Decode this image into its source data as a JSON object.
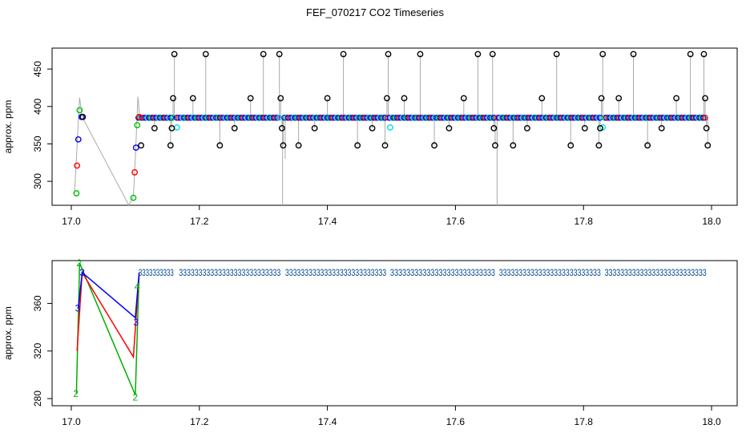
{
  "title": "FEF_070217  CO2 Timeseries",
  "chart_data": [
    {
      "type": "scatter",
      "title": "FEF_070217  CO2 Timeseries",
      "ylabel": "approx. ppm",
      "xlabel": "",
      "xlim": [
        16.97,
        18.04
      ],
      "ylim": [
        268,
        478
      ],
      "x_ticks": [
        17.0,
        17.2,
        17.4,
        17.6,
        17.8,
        18.0
      ],
      "x_tick_labels": [
        "17.0",
        "17.2",
        "17.4",
        "17.6",
        "17.8",
        "18.0"
      ],
      "y_ticks": [
        300,
        350,
        400,
        450
      ],
      "y_tick_labels": [
        "300",
        "350",
        "400",
        "450"
      ],
      "colors": {
        "red": "#ff0000",
        "green": "#00c000",
        "blue": "#0000ff",
        "cyan": "#00e0e0",
        "black": "#000000",
        "line": "#aaaaaa"
      },
      "early_points": [
        {
          "x": 17.008,
          "y": 284,
          "color": "green"
        },
        {
          "x": 17.009,
          "y": 321,
          "color": "red"
        },
        {
          "x": 17.011,
          "y": 356,
          "color": "blue"
        },
        {
          "x": 17.013,
          "y": 395,
          "color": "green"
        },
        {
          "x": 17.016,
          "y": 386,
          "color": "blue"
        },
        {
          "x": 17.018,
          "y": 386,
          "color": "black"
        },
        {
          "x": 17.097,
          "y": 278,
          "color": "green"
        },
        {
          "x": 17.099,
          "y": 312,
          "color": "red"
        },
        {
          "x": 17.101,
          "y": 345,
          "color": "blue"
        },
        {
          "x": 17.103,
          "y": 375,
          "color": "green"
        },
        {
          "x": 17.106,
          "y": 386,
          "color": "red"
        },
        {
          "x": 17.109,
          "y": 348,
          "color": "black"
        },
        {
          "x": 17.165,
          "y": 372,
          "color": "cyan"
        },
        {
          "x": 17.498,
          "y": 372,
          "color": "cyan"
        },
        {
          "x": 17.83,
          "y": 372,
          "color": "cyan"
        }
      ],
      "baseline_segments": [
        [
          17.105,
          17.16
        ],
        [
          17.165,
          17.325
        ],
        [
          17.333,
          17.492
        ],
        [
          17.495,
          17.662
        ],
        [
          17.666,
          17.826
        ],
        [
          17.833,
          17.99
        ]
      ],
      "baseline_value": 385,
      "black_outliers": [
        {
          "x": 17.13,
          "y": 371
        },
        {
          "x": 17.155,
          "y": 348
        },
        {
          "x": 17.157,
          "y": 371
        },
        {
          "x": 17.159,
          "y": 411
        },
        {
          "x": 17.161,
          "y": 470
        },
        {
          "x": 17.19,
          "y": 411
        },
        {
          "x": 17.21,
          "y": 470
        },
        {
          "x": 17.232,
          "y": 348
        },
        {
          "x": 17.255,
          "y": 371
        },
        {
          "x": 17.28,
          "y": 411
        },
        {
          "x": 17.3,
          "y": 470
        },
        {
          "x": 17.325,
          "y": 470
        },
        {
          "x": 17.327,
          "y": 411
        },
        {
          "x": 17.329,
          "y": 371
        },
        {
          "x": 17.331,
          "y": 348
        },
        {
          "x": 17.355,
          "y": 348
        },
        {
          "x": 17.38,
          "y": 371
        },
        {
          "x": 17.4,
          "y": 411
        },
        {
          "x": 17.425,
          "y": 470
        },
        {
          "x": 17.447,
          "y": 348
        },
        {
          "x": 17.47,
          "y": 371
        },
        {
          "x": 17.49,
          "y": 348
        },
        {
          "x": 17.493,
          "y": 411
        },
        {
          "x": 17.495,
          "y": 470
        },
        {
          "x": 17.52,
          "y": 411
        },
        {
          "x": 17.545,
          "y": 470
        },
        {
          "x": 17.567,
          "y": 348
        },
        {
          "x": 17.59,
          "y": 371
        },
        {
          "x": 17.613,
          "y": 411
        },
        {
          "x": 17.635,
          "y": 470
        },
        {
          "x": 17.658,
          "y": 470
        },
        {
          "x": 17.66,
          "y": 371
        },
        {
          "x": 17.662,
          "y": 348
        },
        {
          "x": 17.69,
          "y": 348
        },
        {
          "x": 17.712,
          "y": 371
        },
        {
          "x": 17.735,
          "y": 411
        },
        {
          "x": 17.758,
          "y": 470
        },
        {
          "x": 17.78,
          "y": 348
        },
        {
          "x": 17.802,
          "y": 371
        },
        {
          "x": 17.824,
          "y": 348
        },
        {
          "x": 17.826,
          "y": 371
        },
        {
          "x": 17.828,
          "y": 411
        },
        {
          "x": 17.83,
          "y": 470
        },
        {
          "x": 17.855,
          "y": 411
        },
        {
          "x": 17.878,
          "y": 470
        },
        {
          "x": 17.9,
          "y": 348
        },
        {
          "x": 17.922,
          "y": 371
        },
        {
          "x": 17.945,
          "y": 411
        },
        {
          "x": 17.967,
          "y": 470
        },
        {
          "x": 17.988,
          "y": 470
        },
        {
          "x": 17.99,
          "y": 411
        },
        {
          "x": 17.992,
          "y": 371
        },
        {
          "x": 17.994,
          "y": 348
        }
      ],
      "gray_trace": [
        [
          17.005,
          284
        ],
        [
          17.008,
          330
        ],
        [
          17.01,
          365
        ],
        [
          17.013,
          412
        ],
        [
          17.017,
          386
        ],
        [
          17.09,
          268
        ],
        [
          17.097,
          280
        ],
        [
          17.1,
          330
        ],
        [
          17.104,
          413
        ],
        [
          17.107,
          385
        ]
      ]
    },
    {
      "type": "line",
      "xlabel": "",
      "ylabel": "approx. ppm",
      "xlim": [
        16.97,
        18.04
      ],
      "ylim": [
        274,
        396
      ],
      "x_ticks": [
        17.0,
        17.2,
        17.4,
        17.6,
        17.8,
        18.0
      ],
      "x_tick_labels": [
        "17.0",
        "17.2",
        "17.4",
        "17.6",
        "17.8",
        "18.0"
      ],
      "y_ticks": [
        280,
        320,
        360
      ],
      "y_tick_labels": [
        "280",
        "320",
        "360"
      ],
      "series": [
        {
          "marker": "2",
          "color": "#00b000",
          "points": [
            [
              17.008,
              284
            ],
            [
              17.013,
              394
            ],
            [
              17.1,
              283
            ],
            [
              17.106,
              386
            ]
          ]
        },
        {
          "marker": "1",
          "color": "#ff0000",
          "points": [
            [
              17.009,
              320
            ],
            [
              17.017,
              386
            ],
            [
              17.097,
              315
            ],
            [
              17.106,
              386
            ]
          ]
        },
        {
          "marker": "3",
          "color": "#0000ff",
          "points": [
            [
              17.011,
              356
            ],
            [
              17.017,
              386
            ],
            [
              17.1,
              348
            ],
            [
              17.106,
              386
            ]
          ]
        }
      ],
      "point_labels": [
        {
          "x": 17.007,
          "y": 284,
          "text": "2",
          "color": "#00b000"
        },
        {
          "x": 17.012,
          "y": 394,
          "text": "2",
          "color": "#00b000"
        },
        {
          "x": 17.01,
          "y": 356,
          "text": "3",
          "color": "#0000ff"
        },
        {
          "x": 17.017,
          "y": 386,
          "text": "3",
          "color": "#0000ff"
        },
        {
          "x": 17.1,
          "y": 281,
          "text": "2",
          "color": "#00b000"
        },
        {
          "x": 17.101,
          "y": 344,
          "text": "3",
          "color": "#0000ff"
        },
        {
          "x": 17.103,
          "y": 374,
          "text": "4",
          "color": "#00b000"
        }
      ],
      "label_rows": [
        {
          "x": [
            17.105,
            17.16
          ],
          "text": "3333333333"
        },
        {
          "x": [
            17.168,
            17.327
          ],
          "text": "33333333333333333333333333"
        },
        {
          "x": [
            17.334,
            17.492
          ],
          "text": "33333333333333333333333333"
        },
        {
          "x": [
            17.498,
            17.662
          ],
          "text": "33333333333333333333333333"
        },
        {
          "x": [
            17.668,
            17.827
          ],
          "text": "33333333333333333333333333"
        },
        {
          "x": [
            17.833,
            17.992
          ],
          "text": "33333333333333333333333333"
        }
      ],
      "label_row_value": 386
    }
  ]
}
